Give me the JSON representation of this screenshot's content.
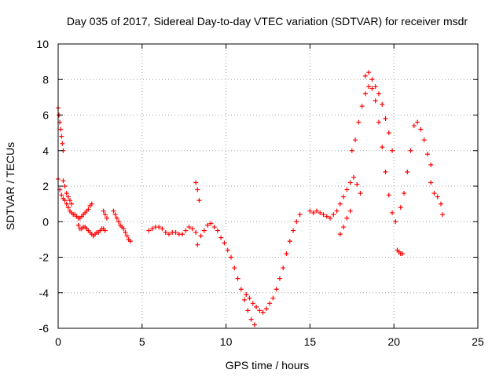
{
  "chart_data": {
    "type": "scatter",
    "title": "Day 035 of 2017, Sidereal Day-to-day VTEC variation (SDTVAR) for receiver msdr",
    "xlabel": "GPS time / hours",
    "ylabel": "SDTVAR / TECUs",
    "xlim": [
      0,
      25
    ],
    "ylim": [
      -6,
      10
    ],
    "xticks": [
      0,
      5,
      10,
      15,
      20,
      25
    ],
    "xtick_labels": [
      "0",
      "5",
      "10",
      "15",
      "20",
      "25"
    ],
    "yticks": [
      -6,
      -4,
      -2,
      0,
      2,
      4,
      6,
      8,
      10
    ],
    "ytick_labels": [
      "-6",
      "-4",
      "-2",
      "0",
      "2",
      "4",
      "6",
      "8",
      "10"
    ],
    "grid": true,
    "marker": "+",
    "marker_color": "#ff0000",
    "series": [
      {
        "name": "s1",
        "x": [
          0.0,
          0.05,
          0.1,
          0.15,
          0.2,
          0.25,
          0.3
        ],
        "y": [
          6.4,
          6.0,
          5.6,
          5.2,
          4.8,
          4.4,
          4.0
        ]
      },
      {
        "name": "s2",
        "x": [
          0.0,
          0.1,
          0.2,
          0.3,
          0.4,
          0.5,
          0.6,
          0.7,
          0.8,
          0.9,
          1.0,
          1.1,
          1.2,
          1.3,
          1.4,
          1.5,
          1.6,
          1.7,
          1.8,
          1.9,
          2.0
        ],
        "y": [
          2.4,
          1.8,
          1.5,
          1.3,
          1.2,
          1.0,
          0.8,
          0.6,
          0.5,
          0.4,
          0.4,
          0.3,
          0.2,
          0.2,
          0.3,
          0.4,
          0.5,
          0.6,
          0.7,
          0.9,
          1.0
        ]
      },
      {
        "name": "s3",
        "x": [
          0.3,
          0.4,
          0.5,
          0.6,
          0.7,
          0.8
        ],
        "y": [
          2.3,
          2.0,
          1.6,
          1.4,
          1.2,
          1.0
        ]
      },
      {
        "name": "s4",
        "x": [
          1.2,
          1.3,
          1.4,
          1.5,
          1.6,
          1.7,
          1.8,
          1.9,
          2.0,
          2.1,
          2.2,
          2.3,
          2.4,
          2.5,
          2.6,
          2.7,
          2.8
        ],
        "y": [
          -0.2,
          -0.4,
          -0.4,
          -0.3,
          -0.3,
          -0.4,
          -0.5,
          -0.6,
          -0.7,
          -0.8,
          -0.7,
          -0.6,
          -0.6,
          -0.5,
          -0.4,
          -0.4,
          -0.5
        ]
      },
      {
        "name": "s5",
        "x": [
          2.7,
          2.8,
          2.9
        ],
        "y": [
          0.6,
          0.4,
          0.2
        ]
      },
      {
        "name": "s6",
        "x": [
          3.3,
          3.4,
          3.5,
          3.6,
          3.7,
          3.8,
          3.9,
          4.0,
          4.1,
          4.2,
          4.3
        ],
        "y": [
          0.6,
          0.4,
          0.2,
          0.0,
          -0.2,
          -0.3,
          -0.4,
          -0.6,
          -0.8,
          -1.0,
          -1.1
        ]
      },
      {
        "name": "s7",
        "x": [
          5.4,
          5.6,
          5.8,
          6.0,
          6.2,
          6.4,
          6.6,
          6.8,
          7.0,
          7.2,
          7.4,
          7.6,
          7.8,
          8.0,
          8.2
        ],
        "y": [
          -0.5,
          -0.4,
          -0.3,
          -0.3,
          -0.4,
          -0.6,
          -0.7,
          -0.6,
          -0.6,
          -0.7,
          -0.7,
          -0.5,
          -0.3,
          -0.4,
          -0.6
        ]
      },
      {
        "name": "s8",
        "x": [
          8.2,
          8.3,
          8.4
        ],
        "y": [
          2.2,
          1.8,
          1.2
        ]
      },
      {
        "name": "s9",
        "x": [
          8.3,
          8.5,
          8.7,
          8.9,
          9.1,
          9.3,
          9.5,
          9.7,
          9.9,
          10.1,
          10.3,
          10.5,
          10.7,
          10.9,
          11.1,
          11.3,
          11.5,
          11.7
        ],
        "y": [
          -1.3,
          -0.8,
          -0.5,
          -0.2,
          -0.1,
          -0.3,
          -0.5,
          -0.9,
          -1.2,
          -1.6,
          -2.0,
          -2.6,
          -3.2,
          -3.8,
          -4.4,
          -5.0,
          -5.5,
          -5.8
        ]
      },
      {
        "name": "s10",
        "x": [
          11.2,
          11.4,
          11.6,
          11.8,
          12.0,
          12.2,
          12.4,
          12.6,
          12.8,
          13.0,
          13.2,
          13.4,
          13.6,
          13.8,
          14.0,
          14.2,
          14.4
        ],
        "y": [
          -4.1,
          -4.3,
          -4.6,
          -4.8,
          -5.0,
          -5.1,
          -4.9,
          -4.6,
          -4.3,
          -3.8,
          -3.2,
          -2.6,
          -1.8,
          -1.1,
          -0.5,
          0.0,
          0.4
        ]
      },
      {
        "name": "s11",
        "x": [
          15.0,
          15.2,
          15.4,
          15.6,
          15.8,
          16.0,
          16.2,
          16.4,
          16.6,
          16.8,
          17.0,
          17.2,
          17.4,
          17.6,
          17.8,
          18.0
        ],
        "y": [
          0.6,
          0.5,
          0.6,
          0.5,
          0.4,
          0.3,
          0.2,
          0.4,
          0.6,
          1.0,
          1.4,
          1.8,
          2.2,
          2.5,
          2.1,
          1.6
        ]
      },
      {
        "name": "s12",
        "x": [
          16.8,
          17.0,
          17.2,
          17.4
        ],
        "y": [
          -0.7,
          -0.3,
          0.2,
          0.6
        ]
      },
      {
        "name": "s13",
        "x": [
          17.5,
          17.7,
          17.9,
          18.1,
          18.3,
          18.5,
          18.7,
          18.9,
          19.1,
          19.3,
          19.5,
          19.7,
          19.9,
          20.1
        ],
        "y": [
          4.0,
          4.6,
          5.6,
          6.5,
          7.2,
          7.6,
          7.5,
          6.8,
          5.6,
          4.2,
          2.8,
          1.5,
          0.5,
          0.0
        ]
      },
      {
        "name": "s14",
        "x": [
          18.3,
          18.5,
          18.7,
          18.9,
          19.1,
          19.3,
          19.5,
          19.7,
          19.9
        ],
        "y": [
          8.2,
          8.4,
          8.0,
          7.6,
          7.2,
          6.6,
          5.8,
          5.0,
          4.0
        ]
      },
      {
        "name": "s15",
        "x": [
          20.2,
          20.3,
          20.4,
          20.5
        ],
        "y": [
          -1.6,
          -1.7,
          -1.8,
          -1.8
        ]
      },
      {
        "name": "s16",
        "x": [
          20.4,
          20.6,
          20.8,
          21.0,
          21.2,
          21.4,
          21.6,
          21.8,
          22.0,
          22.2
        ],
        "y": [
          0.8,
          1.6,
          2.8,
          4.0,
          5.4,
          5.6,
          5.2,
          4.6,
          3.8,
          3.2
        ]
      },
      {
        "name": "s17",
        "x": [
          22.2,
          22.4,
          22.6,
          22.8,
          22.9
        ],
        "y": [
          2.2,
          1.6,
          1.4,
          1.0,
          0.4
        ]
      }
    ]
  }
}
